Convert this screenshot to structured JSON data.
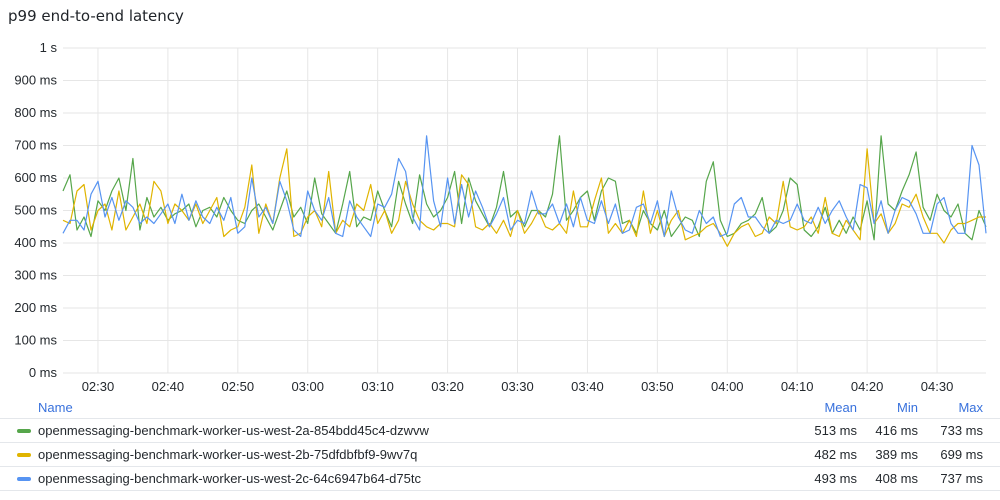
{
  "panel": {
    "title": "p99 end-to-end latency"
  },
  "legend": {
    "headers": {
      "name": "Name",
      "mean": "Mean",
      "min": "Min",
      "max": "Max"
    },
    "rows": [
      {
        "name": "openmessaging-benchmark-worker-us-west-2a-854bdd45c4-dzwvw",
        "mean": "513 ms",
        "min": "416 ms",
        "max": "733 ms",
        "color": "#56a64b"
      },
      {
        "name": "openmessaging-benchmark-worker-us-west-2b-75dfdbfbf9-9wv7q",
        "mean": "482 ms",
        "min": "389 ms",
        "max": "699 ms",
        "color": "#e0b400"
      },
      {
        "name": "openmessaging-benchmark-worker-us-west-2c-64c6947b64-d75tc",
        "mean": "493 ms",
        "min": "408 ms",
        "max": "737 ms",
        "color": "#5794f2"
      }
    ]
  },
  "chart_data": {
    "type": "line",
    "title": "p99 end-to-end latency",
    "ylim": [
      0,
      1000
    ],
    "y_ticks": [
      0,
      100,
      200,
      300,
      400,
      500,
      600,
      700,
      800,
      900,
      1000
    ],
    "y_tick_labels": [
      "0 ms",
      "100 ms",
      "200 ms",
      "300 ms",
      "400 ms",
      "500 ms",
      "600 ms",
      "700 ms",
      "800 ms",
      "900 ms",
      "1 s"
    ],
    "x_range": [
      "02:25",
      "04:37"
    ],
    "x_ticks": [
      "02:30",
      "02:40",
      "02:50",
      "03:00",
      "03:10",
      "03:20",
      "03:30",
      "03:40",
      "03:50",
      "04:00",
      "04:10",
      "04:20",
      "04:30"
    ],
    "grid": true,
    "series": [
      {
        "name": "openmessaging-benchmark-worker-us-west-2a-854bdd45c4-dzwvw",
        "color": "#56a64b",
        "x": [
          "02:25",
          "02:26",
          "02:27",
          "02:28",
          "02:29",
          "02:30",
          "02:31",
          "02:32",
          "02:33",
          "02:34",
          "02:35",
          "02:36",
          "02:37",
          "02:38",
          "02:39",
          "02:40",
          "02:41",
          "02:42",
          "02:43",
          "02:44",
          "02:45",
          "02:46",
          "02:47",
          "02:48",
          "02:49",
          "02:50",
          "02:51",
          "02:52",
          "02:53",
          "02:54",
          "02:55",
          "02:56",
          "02:57",
          "02:58",
          "02:59",
          "03:00",
          "03:01",
          "03:02",
          "03:03",
          "03:04",
          "03:05",
          "03:06",
          "03:07",
          "03:08",
          "03:09",
          "03:10",
          "03:11",
          "03:12",
          "03:13",
          "03:14",
          "03:15",
          "03:16",
          "03:17",
          "03:18",
          "03:19",
          "03:20",
          "03:21",
          "03:22",
          "03:23",
          "03:24",
          "03:25",
          "03:26",
          "03:27",
          "03:28",
          "03:29",
          "03:30",
          "03:31",
          "03:32",
          "03:33",
          "03:34",
          "03:35",
          "03:36",
          "03:37",
          "03:38",
          "03:39",
          "03:40",
          "03:41",
          "03:42",
          "03:43",
          "03:44",
          "03:45",
          "03:46",
          "03:47",
          "03:48",
          "03:49",
          "03:50",
          "03:51",
          "03:52",
          "03:53",
          "03:54",
          "03:55",
          "03:56",
          "03:57",
          "03:58",
          "03:59",
          "04:00",
          "04:01",
          "04:02",
          "04:03",
          "04:04",
          "04:05",
          "04:06",
          "04:07",
          "04:08",
          "04:09",
          "04:10",
          "04:11",
          "04:12",
          "04:13",
          "04:14",
          "04:15",
          "04:16",
          "04:17",
          "04:18",
          "04:19",
          "04:20",
          "04:21",
          "04:22",
          "04:23",
          "04:24",
          "04:25",
          "04:26",
          "04:27",
          "04:28",
          "04:29",
          "04:30",
          "04:31",
          "04:32",
          "04:33",
          "04:34",
          "04:35",
          "04:36",
          "04:37"
        ],
        "y": [
          560,
          610,
          440,
          480,
          420,
          530,
          500,
          560,
          600,
          500,
          660,
          440,
          540,
          480,
          510,
          470,
          490,
          500,
          520,
          450,
          500,
          510,
          480,
          540,
          500,
          470,
          460,
          500,
          520,
          480,
          440,
          500,
          560,
          480,
          510,
          460,
          600,
          490,
          460,
          430,
          520,
          620,
          450,
          480,
          470,
          560,
          500,
          450,
          590,
          520,
          460,
          610,
          520,
          480,
          500,
          540,
          620,
          460,
          600,
          530,
          490,
          450,
          510,
          620,
          480,
          500,
          450,
          500,
          500,
          480,
          550,
          730,
          470,
          500,
          540,
          560,
          470,
          560,
          600,
          590,
          460,
          470,
          430,
          500,
          460,
          440,
          500,
          420,
          450,
          480,
          470,
          420,
          590,
          650,
          470,
          420,
          430,
          460,
          470,
          490,
          540,
          430,
          450,
          500,
          600,
          580,
          440,
          420,
          450,
          510,
          430,
          470,
          430,
          480,
          440,
          530,
          410,
          730,
          520,
          500,
          560,
          610,
          680,
          510,
          470,
          550,
          500,
          480,
          520,
          430,
          410,
          500,
          450
        ]
      },
      {
        "name": "openmessaging-benchmark-worker-us-west-2b-75dfdbfbf9-9wv7q",
        "color": "#e0b400",
        "x": [
          "02:25",
          "02:26",
          "02:27",
          "02:28",
          "02:29",
          "02:30",
          "02:31",
          "02:32",
          "02:33",
          "02:34",
          "02:35",
          "02:36",
          "02:37",
          "02:38",
          "02:39",
          "02:40",
          "02:41",
          "02:42",
          "02:43",
          "02:44",
          "02:45",
          "02:46",
          "02:47",
          "02:48",
          "02:49",
          "02:50",
          "02:51",
          "02:52",
          "02:53",
          "02:54",
          "02:55",
          "02:56",
          "02:57",
          "02:58",
          "02:59",
          "03:00",
          "03:01",
          "03:02",
          "03:03",
          "03:04",
          "03:05",
          "03:06",
          "03:07",
          "03:08",
          "03:09",
          "03:10",
          "03:11",
          "03:12",
          "03:13",
          "03:14",
          "03:15",
          "03:16",
          "03:17",
          "03:18",
          "03:19",
          "03:20",
          "03:21",
          "03:22",
          "03:23",
          "03:24",
          "03:25",
          "03:26",
          "03:27",
          "03:28",
          "03:29",
          "03:30",
          "03:31",
          "03:32",
          "03:33",
          "03:34",
          "03:35",
          "03:36",
          "03:37",
          "03:38",
          "03:39",
          "03:40",
          "03:41",
          "03:42",
          "03:43",
          "03:44",
          "03:45",
          "03:46",
          "03:47",
          "03:48",
          "03:49",
          "03:50",
          "03:51",
          "03:52",
          "03:53",
          "03:54",
          "03:55",
          "03:56",
          "03:57",
          "03:58",
          "03:59",
          "04:00",
          "04:01",
          "04:02",
          "04:03",
          "04:04",
          "04:05",
          "04:06",
          "04:07",
          "04:08",
          "04:09",
          "04:10",
          "04:11",
          "04:12",
          "04:13",
          "04:14",
          "04:15",
          "04:16",
          "04:17",
          "04:18",
          "04:19",
          "04:20",
          "04:21",
          "04:22",
          "04:23",
          "04:24",
          "04:25",
          "04:26",
          "04:27",
          "04:28",
          "04:29",
          "04:30",
          "04:31",
          "04:32",
          "04:33",
          "04:34",
          "04:35",
          "04:36",
          "04:37"
        ],
        "y": [
          470,
          460,
          560,
          580,
          440,
          500,
          520,
          440,
          560,
          440,
          480,
          520,
          460,
          590,
          560,
          460,
          520,
          500,
          470,
          520,
          460,
          500,
          540,
          420,
          440,
          450,
          510,
          640,
          430,
          520,
          460,
          600,
          690,
          420,
          430,
          480,
          500,
          450,
          620,
          430,
          470,
          450,
          520,
          500,
          580,
          460,
          500,
          430,
          470,
          590,
          520,
          470,
          450,
          440,
          460,
          460,
          450,
          610,
          580,
          450,
          440,
          460,
          430,
          470,
          420,
          500,
          430,
          460,
          500,
          450,
          440,
          460,
          430,
          560,
          450,
          450,
          530,
          600,
          430,
          460,
          430,
          470,
          420,
          560,
          430,
          500,
          420,
          470,
          500,
          410,
          420,
          430,
          450,
          460,
          430,
          390,
          430,
          450,
          460,
          420,
          430,
          480,
          460,
          590,
          450,
          440,
          450,
          480,
          430,
          540,
          430,
          420,
          470,
          440,
          410,
          690,
          460,
          490,
          430,
          460,
          520,
          510,
          550,
          480,
          430,
          430,
          400,
          440,
          460,
          460,
          470,
          480,
          480
        ]
      },
      {
        "name": "openmessaging-benchmark-worker-us-west-2c-64c6947b64-d75tc",
        "color": "#5794f2",
        "x": [
          "02:25",
          "02:26",
          "02:27",
          "02:28",
          "02:29",
          "02:30",
          "02:31",
          "02:32",
          "02:33",
          "02:34",
          "02:35",
          "02:36",
          "02:37",
          "02:38",
          "02:39",
          "02:40",
          "02:41",
          "02:42",
          "02:43",
          "02:44",
          "02:45",
          "02:46",
          "02:47",
          "02:48",
          "02:49",
          "02:50",
          "02:51",
          "02:52",
          "02:53",
          "02:54",
          "02:55",
          "02:56",
          "02:57",
          "02:58",
          "02:59",
          "03:00",
          "03:01",
          "03:02",
          "03:03",
          "03:04",
          "03:05",
          "03:06",
          "03:07",
          "03:08",
          "03:09",
          "03:10",
          "03:11",
          "03:12",
          "03:13",
          "03:14",
          "03:15",
          "03:16",
          "03:17",
          "03:18",
          "03:19",
          "03:20",
          "03:21",
          "03:22",
          "03:23",
          "03:24",
          "03:25",
          "03:26",
          "03:27",
          "03:28",
          "03:29",
          "03:30",
          "03:31",
          "03:32",
          "03:33",
          "03:34",
          "03:35",
          "03:36",
          "03:37",
          "03:38",
          "03:39",
          "03:40",
          "03:41",
          "03:42",
          "03:43",
          "03:44",
          "03:45",
          "03:46",
          "03:47",
          "03:48",
          "03:49",
          "03:50",
          "03:51",
          "03:52",
          "03:53",
          "03:54",
          "03:55",
          "03:56",
          "03:57",
          "03:58",
          "03:59",
          "04:00",
          "04:01",
          "04:02",
          "04:03",
          "04:04",
          "04:05",
          "04:06",
          "04:07",
          "04:08",
          "04:09",
          "04:10",
          "04:11",
          "04:12",
          "04:13",
          "04:14",
          "04:15",
          "04:16",
          "04:17",
          "04:18",
          "04:19",
          "04:20",
          "04:21",
          "04:22",
          "04:23",
          "04:24",
          "04:25",
          "04:26",
          "04:27",
          "04:28",
          "04:29",
          "04:30",
          "04:31",
          "04:32",
          "04:33",
          "04:34",
          "04:35",
          "04:36",
          "04:37"
        ],
        "y": [
          430,
          470,
          470,
          440,
          550,
          590,
          480,
          540,
          470,
          530,
          510,
          460,
          480,
          460,
          490,
          520,
          460,
          550,
          470,
          530,
          480,
          460,
          510,
          470,
          540,
          430,
          450,
          600,
          480,
          510,
          460,
          590,
          530,
          440,
          420,
          560,
          500,
          470,
          540,
          430,
          420,
          530,
          480,
          450,
          420,
          520,
          510,
          550,
          660,
          620,
          480,
          440,
          730,
          530,
          450,
          600,
          460,
          580,
          480,
          560,
          510,
          450,
          490,
          540,
          440,
          470,
          460,
          560,
          490,
          490,
          520,
          460,
          520,
          450,
          540,
          470,
          460,
          530,
          460,
          520,
          430,
          440,
          510,
          520,
          460,
          530,
          420,
          560,
          480,
          440,
          430,
          500,
          460,
          480,
          420,
          430,
          520,
          540,
          480,
          480,
          450,
          430,
          470,
          460,
          470,
          520,
          470,
          460,
          510,
          460,
          500,
          530,
          480,
          440,
          580,
          570,
          460,
          530,
          430,
          500,
          540,
          530,
          490,
          430,
          430,
          520,
          540,
          460,
          430,
          430,
          700,
          640,
          430
        ]
      }
    ]
  }
}
